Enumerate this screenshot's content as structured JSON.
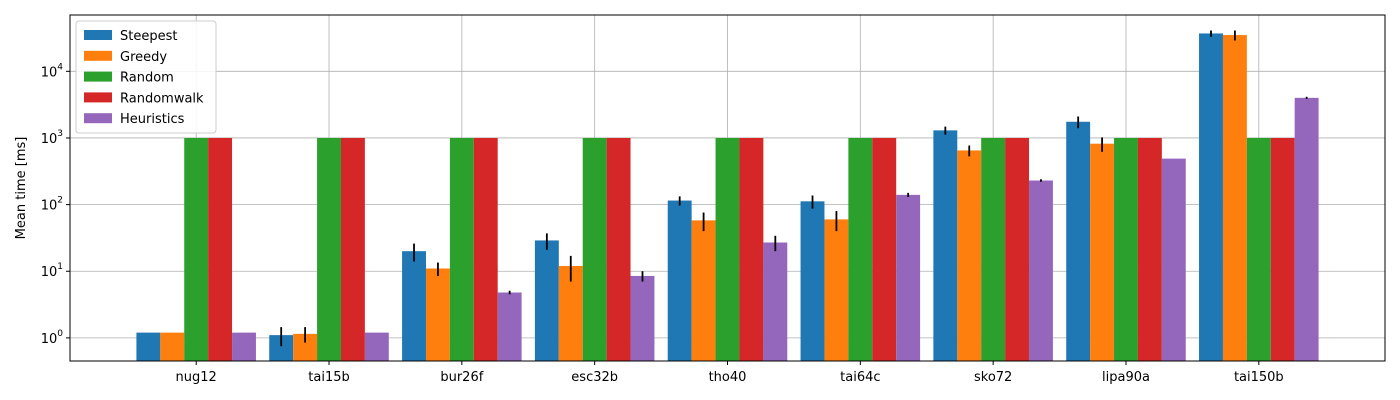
{
  "chart_data": {
    "type": "bar",
    "ylabel": "Mean time [ms]",
    "yscale": "log",
    "ylim": [
      0.45,
      70000
    ],
    "yticks": [
      1,
      10,
      100,
      1000,
      10000
    ],
    "ytick_labels": [
      {
        "base": "10",
        "exp": "0"
      },
      {
        "base": "10",
        "exp": "1"
      },
      {
        "base": "10",
        "exp": "2"
      },
      {
        "base": "10",
        "exp": "3"
      },
      {
        "base": "10",
        "exp": "4"
      }
    ],
    "grid": true,
    "legend_position": "top-left",
    "categories": [
      "nug12",
      "tai15b",
      "bur26f",
      "esc32b",
      "tho40",
      "tai64c",
      "sko72",
      "lipa90a",
      "tai150b"
    ],
    "series": [
      {
        "name": "Steepest",
        "color": "#1f77b4",
        "values": [
          1.2,
          1.1,
          20,
          29,
          115,
          112,
          1300,
          1750,
          37000
        ],
        "errors": [
          0,
          0.35,
          6,
          8,
          18,
          25,
          180,
          350,
          4000
        ]
      },
      {
        "name": "Greedy",
        "color": "#ff7f0e",
        "values": [
          1.2,
          1.15,
          11,
          12,
          58,
          60,
          650,
          820,
          35000
        ],
        "errors": [
          0,
          0.3,
          2.5,
          5,
          18,
          20,
          120,
          200,
          6000
        ]
      },
      {
        "name": "Random",
        "color": "#2ca02c",
        "values": [
          1000,
          1000,
          1000,
          1000,
          1000,
          1000,
          1000,
          1000,
          1000
        ],
        "errors": [
          0,
          0,
          0,
          0,
          0,
          0,
          0,
          0,
          0
        ]
      },
      {
        "name": "Randomwalk",
        "color": "#d62728",
        "values": [
          1000,
          1000,
          1000,
          1000,
          1000,
          1000,
          1000,
          1000,
          1000
        ],
        "errors": [
          0,
          0,
          0,
          0,
          0,
          0,
          0,
          0,
          0
        ]
      },
      {
        "name": "Heuristics",
        "color": "#9467bd",
        "values": [
          1.2,
          1.2,
          4.8,
          8.5,
          27,
          140,
          230,
          490,
          4000
        ],
        "errors": [
          0,
          0,
          0.3,
          1.5,
          7,
          10,
          10,
          0,
          150
        ]
      }
    ]
  }
}
